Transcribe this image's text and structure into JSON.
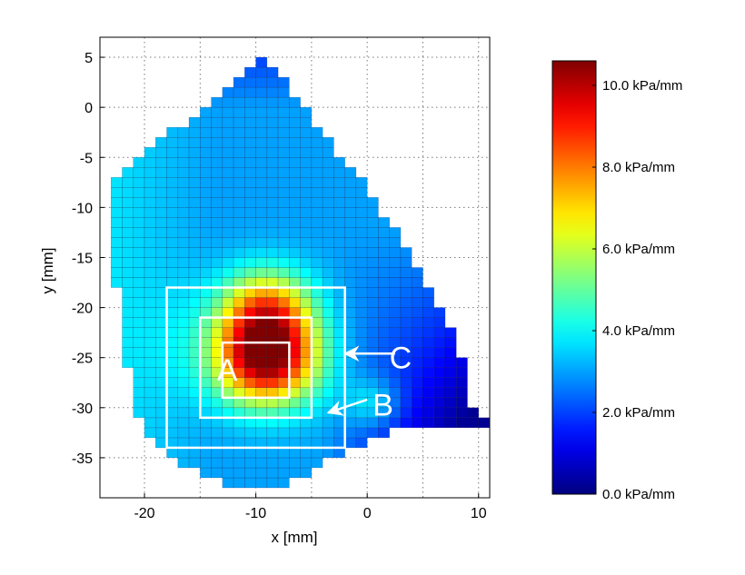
{
  "chart_data": {
    "type": "heatmap",
    "title": "",
    "xlabel": "x [mm]",
    "ylabel": "y [mm]",
    "xlim": [
      -24,
      11
    ],
    "ylim": [
      -39,
      7
    ],
    "x_ticks": [
      -20,
      -10,
      0,
      10
    ],
    "y_ticks": [
      5,
      0,
      -5,
      -10,
      -15,
      -20,
      -25,
      -30,
      -35
    ],
    "x_tick_labels": [
      "-20",
      "-10",
      "0",
      "10"
    ],
    "y_tick_labels": [
      "5",
      "0",
      "-5",
      "-10",
      "-15",
      "-20",
      "-25",
      "-30",
      "-35"
    ],
    "grid": true,
    "grid_cell_mm": 1,
    "colormap": "jet",
    "colorbar": {
      "min": 0,
      "max": 10.6,
      "unit": "kPa/mm",
      "ticks": [
        0,
        2,
        4,
        6,
        8,
        10
      ],
      "tick_labels": [
        "0.0 kPa/mm",
        "2.0 kPa/mm",
        "4.0 kPa/mm",
        "6.0 kPa/mm",
        "8.0 kPa/mm",
        "10.0 kPa/mm"
      ]
    },
    "field_outline_mm": [
      [
        -9,
        5
      ],
      [
        -3,
        -4
      ],
      [
        0,
        -8
      ],
      [
        3,
        -13
      ],
      [
        5,
        -17
      ],
      [
        7,
        -21
      ],
      [
        9,
        -26
      ],
      [
        9.5,
        -30
      ],
      [
        11,
        -31.5
      ],
      [
        6,
        -32
      ],
      [
        2,
        -32.5
      ],
      [
        -3,
        -35
      ],
      [
        -6,
        -37
      ],
      [
        -10,
        -38.5
      ],
      [
        -12,
        -38
      ],
      [
        -16,
        -36
      ],
      [
        -19,
        -34
      ],
      [
        -21,
        -30
      ],
      [
        -22,
        -22
      ],
      [
        -23,
        -13
      ],
      [
        -23,
        -8
      ],
      [
        -21,
        -5
      ],
      [
        -17,
        -2
      ],
      [
        -13,
        1
      ],
      [
        -11,
        4
      ]
    ],
    "field_peaks": [
      {
        "x": -9,
        "y": -25,
        "value": 10.6,
        "spread": 3.2
      },
      {
        "x": -9,
        "y": -20,
        "value": 7.0,
        "spread": 2.8
      },
      {
        "x": 0.5,
        "y": -29.5,
        "value": 4.5,
        "spread": 1.8
      },
      {
        "x": -15,
        "y": -23,
        "value": 3.5,
        "spread": 4.5
      }
    ],
    "field_base_value": 3.0,
    "annotations": [
      {
        "label": "A",
        "rect_mm": [
          -13,
          -29,
          -7,
          -23.5
        ],
        "text_at": [
          -13.5,
          -26.2
        ]
      },
      {
        "label": "B",
        "rect_mm": [
          -15,
          -31,
          -5,
          -21
        ],
        "text_at": [
          0.5,
          -29.7
        ],
        "arrow_from": [
          0,
          -29.2
        ],
        "arrow_to": [
          -3.5,
          -30.5
        ]
      },
      {
        "label": "C",
        "rect_mm": [
          -18,
          -34,
          -2,
          -18
        ],
        "text_at": [
          2,
          -25
        ],
        "arrow_from": [
          2.5,
          -24.6
        ],
        "arrow_to": [
          -2,
          -24.6
        ]
      }
    ]
  },
  "colors": {
    "roi": "#ffffff",
    "grid": "#7a7a7a",
    "axes": "#000000"
  }
}
